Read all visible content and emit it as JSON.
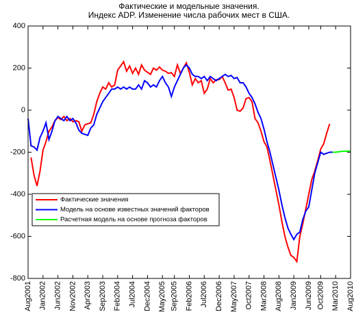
{
  "chart_data": {
    "type": "line",
    "title": "Фактические и модельные значения.",
    "subtitle": "Индекс ADP. Изменение числа рабочих мест в США.",
    "x": [
      "2001-08",
      "2001-09",
      "2001-10",
      "2001-11",
      "2001-12",
      "2002-01",
      "2002-02",
      "2002-03",
      "2002-04",
      "2002-05",
      "2002-06",
      "2002-07",
      "2002-08",
      "2002-09",
      "2002-10",
      "2002-11",
      "2002-12",
      "2003-01",
      "2003-02",
      "2003-03",
      "2003-04",
      "2003-05",
      "2003-06",
      "2003-07",
      "2003-08",
      "2003-09",
      "2003-10",
      "2003-11",
      "2003-12",
      "2004-01",
      "2004-02",
      "2004-03",
      "2004-04",
      "2004-05",
      "2004-06",
      "2004-07",
      "2004-08",
      "2004-09",
      "2004-10",
      "2004-11",
      "2004-12",
      "2005-01",
      "2005-02",
      "2005-03",
      "2005-04",
      "2005-05",
      "2005-06",
      "2005-07",
      "2005-08",
      "2005-09",
      "2005-10",
      "2005-11",
      "2005-12",
      "2006-01",
      "2006-02",
      "2006-03",
      "2006-04",
      "2006-05",
      "2006-06",
      "2006-07",
      "2006-08",
      "2006-09",
      "2006-10",
      "2006-11",
      "2006-12",
      "2007-01",
      "2007-02",
      "2007-03",
      "2007-04",
      "2007-05",
      "2007-06",
      "2007-07",
      "2007-08",
      "2007-09",
      "2007-10",
      "2007-11",
      "2007-12",
      "2008-01",
      "2008-02",
      "2008-03",
      "2008-04",
      "2008-05",
      "2008-06",
      "2008-07",
      "2008-08",
      "2008-09",
      "2008-10",
      "2008-11",
      "2008-12",
      "2009-01",
      "2009-02",
      "2009-03",
      "2009-04",
      "2009-05",
      "2009-06",
      "2009-07",
      "2009-08",
      "2009-09",
      "2009-10",
      "2009-11",
      "2009-12",
      "2010-01",
      "2010-02",
      "2010-03",
      "2010-04",
      "2010-05",
      "2010-06",
      "2010-07",
      "2010-08"
    ],
    "series": [
      {
        "name": "Фактические значения",
        "color": "#ff0000",
        "values": [
          null,
          -225,
          -310,
          -360,
          -290,
          -190,
          -150,
          -100,
          -80,
          -50,
          -35,
          -45,
          -30,
          -50,
          -40,
          -55,
          -50,
          -55,
          -100,
          -70,
          -65,
          -60,
          -20,
          40,
          80,
          110,
          100,
          130,
          110,
          120,
          190,
          210,
          230,
          185,
          210,
          175,
          200,
          170,
          215,
          190,
          180,
          170,
          200,
          190,
          205,
          190,
          185,
          175,
          178,
          160,
          215,
          175,
          200,
          225,
          180,
          120,
          150,
          130,
          140,
          80,
          100,
          150,
          130,
          145,
          145,
          160,
          130,
          95,
          100,
          60,
          0,
          -5,
          10,
          55,
          60,
          40,
          -40,
          -60,
          -100,
          -150,
          -175,
          -240,
          -310,
          -380,
          -450,
          -530,
          -600,
          -650,
          -690,
          -700,
          -720,
          -600,
          -540,
          -470,
          -400,
          -330,
          -290,
          -240,
          -185,
          -160,
          -110,
          -65,
          null,
          null,
          null,
          null,
          null,
          null,
          null
        ]
      },
      {
        "name": "Модель на основе известных значений факторов",
        "color": "#0000ff",
        "values": [
          -40,
          -170,
          -175,
          -190,
          -130,
          -100,
          -60,
          -140,
          -100,
          -50,
          -30,
          -40,
          -50,
          -30,
          -50,
          -40,
          -60,
          -95,
          -110,
          -115,
          -120,
          -85,
          -70,
          -20,
          10,
          40,
          60,
          80,
          100,
          100,
          110,
          100,
          110,
          100,
          110,
          100,
          100,
          120,
          100,
          140,
          130,
          110,
          120,
          110,
          140,
          160,
          130,
          110,
          65,
          110,
          140,
          170,
          200,
          215,
          200,
          170,
          160,
          160,
          150,
          160,
          140,
          160,
          150,
          140,
          150,
          160,
          170,
          160,
          165,
          150,
          155,
          130,
          130,
          110,
          80,
          60,
          30,
          -10,
          -40,
          -90,
          -150,
          -200,
          -260,
          -320,
          -380,
          -450,
          -510,
          -560,
          -590,
          -615,
          -590,
          -580,
          -520,
          -480,
          -460,
          -380,
          -300,
          -250,
          -200,
          -210,
          -205,
          -200,
          -200,
          null,
          null,
          null,
          null,
          null,
          null
        ]
      },
      {
        "name": "Расчетная модель на основе прогноза факторов",
        "color": "#00ff00",
        "values": [
          null,
          null,
          null,
          null,
          null,
          null,
          null,
          null,
          null,
          null,
          null,
          null,
          null,
          null,
          null,
          null,
          null,
          null,
          null,
          null,
          null,
          null,
          null,
          null,
          null,
          null,
          null,
          null,
          null,
          null,
          null,
          null,
          null,
          null,
          null,
          null,
          null,
          null,
          null,
          null,
          null,
          null,
          null,
          null,
          null,
          null,
          null,
          null,
          null,
          null,
          null,
          null,
          null,
          null,
          null,
          null,
          null,
          null,
          null,
          null,
          null,
          null,
          null,
          null,
          null,
          null,
          null,
          null,
          null,
          null,
          null,
          null,
          null,
          null,
          null,
          null,
          null,
          null,
          null,
          null,
          null,
          null,
          null,
          null,
          null,
          null,
          null,
          null,
          null,
          null,
          null,
          null,
          null,
          null,
          null,
          null,
          null,
          null,
          null,
          null,
          null,
          null,
          -200,
          -200,
          -198,
          -196,
          -195,
          -195,
          -195
        ]
      }
    ],
    "xlim": [
      "2001-08",
      "2010-08"
    ],
    "xticks": [
      {
        "value": "2001-08",
        "label": "Aug2001"
      },
      {
        "value": "2002-01",
        "label": "Jan2002"
      },
      {
        "value": "2002-06",
        "label": "Jun2002"
      },
      {
        "value": "2002-11",
        "label": "Nov2002"
      },
      {
        "value": "2003-04",
        "label": "Apr2003"
      },
      {
        "value": "2003-09",
        "label": "Sep2003"
      },
      {
        "value": "2004-02",
        "label": "Feb2004"
      },
      {
        "value": "2004-07",
        "label": "Jul2004"
      },
      {
        "value": "2004-12",
        "label": "Dec2004"
      },
      {
        "value": "2005-05",
        "label": "May2005"
      },
      {
        "value": "2005-09",
        "label": "Sep2005"
      },
      {
        "value": "2006-02",
        "label": "Feb2006"
      },
      {
        "value": "2006-07",
        "label": "Jul2006"
      },
      {
        "value": "2006-12",
        "label": "Dec2006"
      },
      {
        "value": "2007-05",
        "label": "May2007"
      },
      {
        "value": "2007-10",
        "label": "Oct2007"
      },
      {
        "value": "2008-03",
        "label": "Mar2008"
      },
      {
        "value": "2008-08",
        "label": "Aug2008"
      },
      {
        "value": "2009-01",
        "label": "Jan2009"
      },
      {
        "value": "2009-06",
        "label": "Jun2009"
      },
      {
        "value": "2009-10",
        "label": "Oct2009"
      },
      {
        "value": "2010-03",
        "label": "Mar2010"
      },
      {
        "value": "2010-08",
        "label": "Aug2010"
      }
    ],
    "ylim": [
      -800,
      400
    ],
    "yticks": [
      -800,
      -600,
      -400,
      -200,
      0,
      200,
      400
    ],
    "grid": false,
    "legend": "lower left"
  }
}
